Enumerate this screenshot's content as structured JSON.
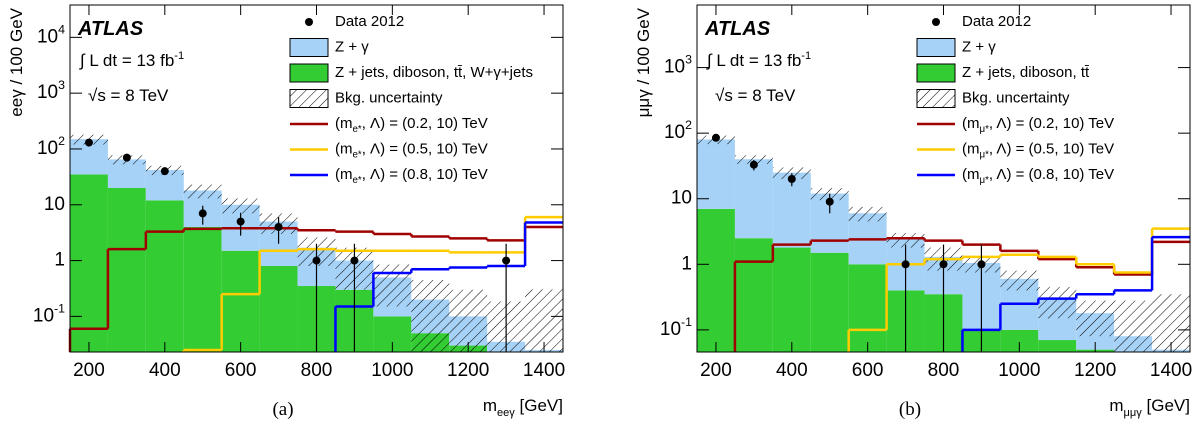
{
  "chart_data": [
    {
      "type": "histogram",
      "caption": "(a)",
      "ylabel": "eeγ / 100 GeV",
      "xlabel": "m_{eeγ} [GeV]",
      "annotations": [
        "ATLAS",
        "∫ L dt = 13 fb^{-1}",
        "√s = 8 TeV"
      ],
      "log_y": true,
      "grid": false,
      "legend": "top-right",
      "bins": [
        150,
        250,
        350,
        450,
        550,
        650,
        750,
        850,
        950,
        1050,
        1150,
        1250,
        1350,
        1450
      ],
      "xlim": [
        150,
        1450
      ],
      "xticks": [
        200,
        400,
        600,
        800,
        1000,
        1200,
        1400
      ],
      "ylim": [
        0.023,
        38000
      ],
      "yticks": [
        {
          "value": 0.1,
          "label": "10^{-1}"
        },
        1,
        10,
        {
          "value": 100,
          "label": "10^{2}"
        },
        {
          "value": 1000,
          "label": "10^{3}"
        },
        {
          "value": 10000,
          "label": "10^{4}"
        }
      ],
      "stack": [
        {
          "name": "Z + jets, diboson, tt̄, W+γ+jets",
          "color": "#33cc33",
          "values": [
            35,
            20,
            12,
            4,
            1.5,
            0.8,
            0.35,
            0.3,
            0.1,
            0.05,
            0.03,
            0.02,
            0.02
          ]
        },
        {
          "name": "Z + γ",
          "color": "#a6d2f7",
          "values": [
            115,
            45,
            30,
            14,
            8.5,
            4.2,
            1.35,
            0.7,
            0.4,
            0.15,
            0.07,
            0.015,
            0.005
          ]
        }
      ],
      "uncertainty": {
        "name": "Bkg. uncertainty",
        "values": [
          30,
          12,
          8,
          5,
          3,
          2,
          0.9,
          0.7,
          0.35,
          0.25,
          0.2,
          0.15,
          0.28
        ]
      },
      "data": {
        "name": "Data 2012",
        "color": "#000000",
        "values": [
          130,
          70,
          40,
          7,
          5,
          4,
          1,
          1,
          null,
          null,
          null,
          1,
          null
        ],
        "errors": [
          11,
          8,
          6,
          2.6,
          2.2,
          2,
          1,
          1,
          null,
          null,
          null,
          1,
          null
        ]
      },
      "signals": [
        {
          "name": "(m_{e*}, Λ) = (0.2, 10) TeV",
          "color": "#a00000",
          "values": [
            0.06,
            1.6,
            3.3,
            3.7,
            3.8,
            3.8,
            3.5,
            3.3,
            3.0,
            2.7,
            2.5,
            2.3,
            4.0
          ]
        },
        {
          "name": "(m_{e*}, Λ) = (0.5, 10) TeV",
          "color": "#ffcc00",
          "values": [
            null,
            null,
            null,
            0.025,
            0.25,
            1.5,
            1.6,
            1.5,
            1.5,
            1.5,
            1.4,
            1.4,
            6.0
          ]
        },
        {
          "name": "(m_{e*}, Λ) = (0.8, 10) TeV",
          "color": "#0000ff",
          "values": [
            null,
            null,
            null,
            null,
            null,
            null,
            null,
            0.15,
            0.6,
            0.7,
            0.75,
            0.8,
            4.8
          ]
        }
      ]
    },
    {
      "type": "histogram",
      "caption": "(b)",
      "ylabel": "μμγ / 100 GeV",
      "xlabel": "m_{μμγ} [GeV]",
      "annotations": [
        "ATLAS",
        "∫ L dt = 13 fb^{-1}",
        "√s = 8 TeV"
      ],
      "log_y": true,
      "grid": false,
      "legend": "top-right",
      "bins": [
        150,
        250,
        350,
        450,
        550,
        650,
        750,
        850,
        950,
        1050,
        1150,
        1250,
        1350,
        1450
      ],
      "xlim": [
        150,
        1450
      ],
      "xticks": [
        200,
        400,
        600,
        800,
        1000,
        1200,
        1400
      ],
      "ylim": [
        0.046,
        9000
      ],
      "yticks": [
        {
          "value": 0.1,
          "label": "10^{-1}"
        },
        1,
        10,
        {
          "value": 100,
          "label": "10^{2}"
        },
        {
          "value": 1000,
          "label": "10^{3}"
        }
      ],
      "stack": [
        {
          "name": "Z + jets, diboson, tt̄",
          "color": "#33cc33",
          "values": [
            7,
            2.5,
            1.8,
            1.5,
            1.0,
            0.4,
            0.35,
            0.1,
            0.1,
            0.07,
            0.05,
            0.03,
            0
          ]
        },
        {
          "name": "Z + γ",
          "color": "#a6d2f7",
          "values": [
            73,
            37.5,
            23.2,
            10.5,
            5,
            2.0,
            0.95,
            0.95,
            0.5,
            0.23,
            0.13,
            0.05,
            0.05
          ]
        }
      ],
      "uncertainty": {
        "name": "Bkg. uncertainty",
        "values": [
          12,
          6,
          5,
          2.5,
          1.5,
          0.6,
          0.5,
          0.3,
          0.2,
          0.15,
          0.1,
          0.2,
          0.3
        ]
      },
      "data": {
        "name": "Data 2012",
        "color": "#000000",
        "values": [
          85,
          33,
          20,
          9,
          null,
          1,
          1,
          1,
          null,
          null,
          null,
          null,
          null
        ],
        "errors": [
          9,
          6,
          4.5,
          3,
          null,
          1,
          1,
          1,
          null,
          null,
          null,
          null,
          null
        ]
      },
      "signals": [
        {
          "name": "(m_{μ*}, Λ) = (0.2, 10) TeV",
          "color": "#a00000",
          "values": [
            null,
            1.1,
            2.0,
            2.3,
            2.4,
            2.5,
            2.3,
            2.0,
            1.6,
            1.2,
            0.9,
            0.7,
            2.2
          ]
        },
        {
          "name": "(m_{μ*}, Λ) = (0.5, 10) TeV",
          "color": "#ffcc00",
          "values": [
            null,
            null,
            null,
            null,
            0.1,
            1.0,
            1.2,
            1.3,
            1.4,
            1.3,
            1.0,
            0.75,
            3.5
          ]
        },
        {
          "name": "(m_{μ*}, Λ) = (0.8, 10) TeV",
          "color": "#0000ff",
          "values": [
            null,
            null,
            null,
            null,
            null,
            null,
            null,
            0.1,
            0.25,
            0.3,
            0.35,
            0.4,
            2.6
          ]
        }
      ]
    }
  ]
}
